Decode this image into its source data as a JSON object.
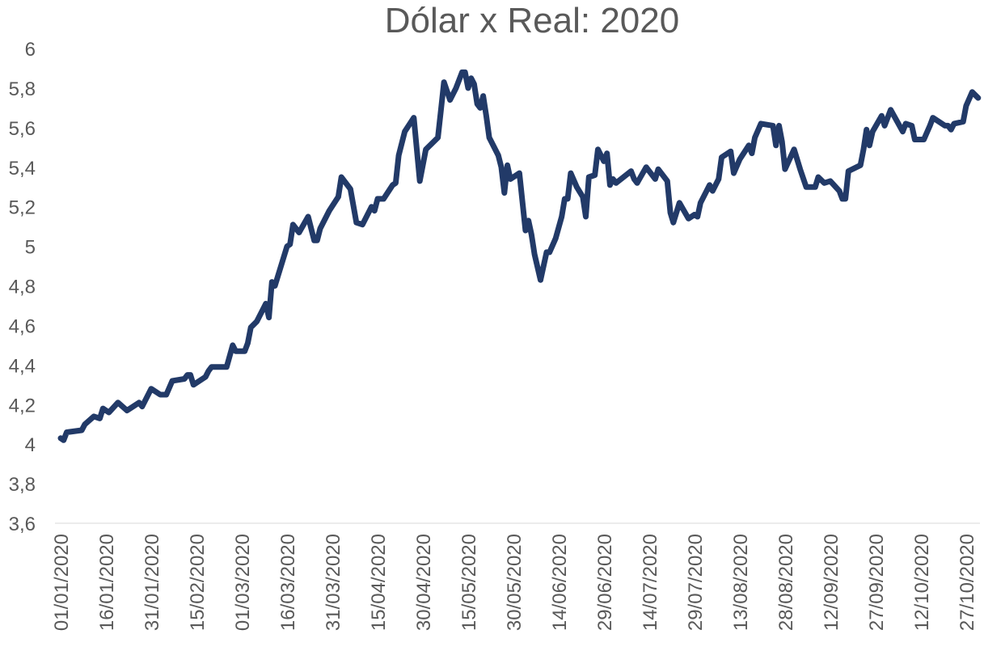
{
  "chart_data": {
    "type": "line",
    "title": "Dólar x Real: 2020",
    "xlabel": "",
    "ylabel": "",
    "ylim": [
      3.6,
      6
    ],
    "yticks": [
      "3,6",
      "3,8",
      "4",
      "4,2",
      "4,4",
      "4,6",
      "4,8",
      "5",
      "5,2",
      "5,4",
      "5,6",
      "5,8",
      "6"
    ],
    "xticks": [
      "01/01/2020",
      "16/01/2020",
      "31/01/2020",
      "15/02/2020",
      "01/03/2020",
      "16/03/2020",
      "31/03/2020",
      "15/04/2020",
      "30/04/2020",
      "15/05/2020",
      "30/05/2020",
      "14/06/2020",
      "29/06/2020",
      "14/07/2020",
      "29/07/2020",
      "13/08/2020",
      "28/08/2020",
      "12/09/2020",
      "27/09/2020",
      "12/10/2020",
      "27/10/2020"
    ],
    "grid": false,
    "legend": "none",
    "line_color": "#223a68",
    "series": [
      {
        "x": [
          "01/01",
          "02/01",
          "03/01",
          "08/01",
          "09/01",
          "12/01",
          "14/01",
          "15/01",
          "17/01",
          "20/01",
          "23/01",
          "27/01",
          "28/01",
          "31/01",
          "03/02",
          "05/02",
          "07/02",
          "11/02",
          "12/02",
          "13/02",
          "14/02",
          "18/02",
          "19/02",
          "20/02",
          "25/02",
          "27/02",
          "28/02",
          "02/03",
          "03/03",
          "04/03",
          "06/03",
          "09/03",
          "10/03",
          "11/03",
          "12/03",
          "16/03",
          "17/03",
          "18/03",
          "20/03",
          "23/03",
          "25/03",
          "26/03",
          "27/03",
          "30/03",
          "02/04",
          "03/04",
          "06/04",
          "08/04",
          "10/04",
          "13/04",
          "14/04",
          "15/04",
          "17/04",
          "20/04",
          "21/04",
          "22/04",
          "24/04",
          "27/04",
          "29/04",
          "01/05",
          "05/05",
          "06/05",
          "07/05",
          "09/05",
          "11/05",
          "13/05",
          "14/05",
          "15/05",
          "16/05",
          "17/05",
          "18/05",
          "19/05",
          "20/05",
          "21/05",
          "22/05",
          "25/05",
          "26/05",
          "27/05",
          "28/05",
          "29/05",
          "01/06",
          "03/06",
          "04/06",
          "05/06",
          "06/06",
          "08/06",
          "10/06",
          "11/06",
          "13/06",
          "15/06",
          "16/06",
          "17/06",
          "18/06",
          "20/06",
          "22/06",
          "23/06",
          "24/06",
          "26/06",
          "27/06",
          "29/06",
          "30/06",
          "01/07",
          "02/07",
          "03/07",
          "08/07",
          "09/07",
          "10/07",
          "13/07",
          "16/07",
          "17/07",
          "20/07",
          "21/07",
          "22/07",
          "24/07",
          "27/07",
          "29/07",
          "30/07",
          "31/07",
          "03/08",
          "04/08",
          "06/08",
          "07/08",
          "10/08",
          "11/08",
          "13/08",
          "16/08",
          "17/08",
          "18/08",
          "20/08",
          "24/08",
          "25/08",
          "26/08",
          "27/08",
          "28/08",
          "31/08",
          "02/09",
          "04/09",
          "07/09",
          "08/09",
          "10/09",
          "12/09",
          "15/09",
          "16/09",
          "17/09",
          "18/09",
          "22/09",
          "23/09",
          "24/09",
          "25/09",
          "26/09",
          "29/09",
          "30/09",
          "02/10",
          "06/10",
          "07/10",
          "09/10",
          "10/10",
          "13/10",
          "15/10",
          "16/10",
          "20/10",
          "21/10",
          "22/10",
          "23/10",
          "26/10",
          "27/10",
          "29/10",
          "31/10"
        ],
        "values": [
          4.03,
          4.02,
          4.06,
          4.07,
          4.1,
          4.14,
          4.13,
          4.18,
          4.16,
          4.21,
          4.17,
          4.21,
          4.19,
          4.28,
          4.25,
          4.25,
          4.32,
          4.33,
          4.35,
          4.35,
          4.3,
          4.34,
          4.37,
          4.39,
          4.39,
          4.5,
          4.47,
          4.47,
          4.51,
          4.59,
          4.62,
          4.71,
          4.64,
          4.82,
          4.8,
          5.0,
          5.01,
          5.11,
          5.07,
          5.15,
          5.03,
          5.03,
          5.09,
          5.18,
          5.25,
          5.35,
          5.29,
          5.12,
          5.11,
          5.2,
          5.18,
          5.24,
          5.24,
          5.31,
          5.32,
          5.46,
          5.58,
          5.65,
          5.33,
          5.49,
          5.55,
          5.69,
          5.83,
          5.74,
          5.8,
          5.88,
          5.88,
          5.8,
          5.85,
          5.82,
          5.72,
          5.7,
          5.76,
          5.66,
          5.55,
          5.46,
          5.4,
          5.27,
          5.41,
          5.34,
          5.37,
          5.08,
          5.13,
          5.06,
          4.96,
          4.83,
          4.97,
          4.97,
          5.04,
          5.15,
          5.24,
          5.24,
          5.37,
          5.3,
          5.25,
          5.15,
          5.35,
          5.36,
          5.49,
          5.43,
          5.47,
          5.31,
          5.34,
          5.32,
          5.38,
          5.34,
          5.32,
          5.4,
          5.34,
          5.39,
          5.33,
          5.17,
          5.12,
          5.22,
          5.14,
          5.16,
          5.15,
          5.22,
          5.31,
          5.28,
          5.34,
          5.45,
          5.48,
          5.37,
          5.44,
          5.51,
          5.47,
          5.55,
          5.62,
          5.61,
          5.51,
          5.61,
          5.53,
          5.39,
          5.49,
          5.39,
          5.3,
          5.3,
          5.35,
          5.32,
          5.33,
          5.28,
          5.24,
          5.24,
          5.38,
          5.41,
          5.49,
          5.59,
          5.51,
          5.58,
          5.66,
          5.61,
          5.69,
          5.58,
          5.62,
          5.61,
          5.54,
          5.54,
          5.61,
          5.65,
          5.61,
          5.61,
          5.59,
          5.62,
          5.63,
          5.71,
          5.78,
          5.75
        ]
      }
    ]
  }
}
